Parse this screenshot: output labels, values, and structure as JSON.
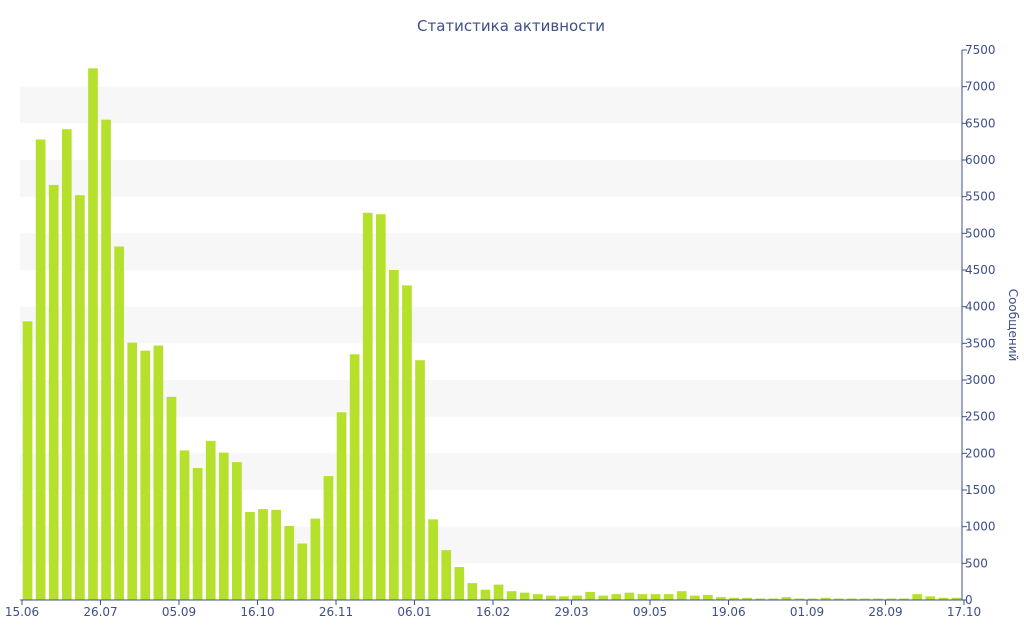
{
  "chart_data": {
    "type": "bar",
    "title": "Статистика активности",
    "ylabel": "Сообщений",
    "xlabel": "",
    "y_axis_position": "right",
    "ylim": [
      0,
      7500
    ],
    "y_ticks": [
      0,
      500,
      1000,
      1500,
      2000,
      2500,
      3000,
      3500,
      4000,
      4500,
      5000,
      5500,
      6000,
      6500,
      7000,
      7500
    ],
    "x_tick_labels": [
      {
        "index": 0,
        "label": "15.06"
      },
      {
        "index": 6,
        "label": "26.07"
      },
      {
        "index": 12,
        "label": "05.09"
      },
      {
        "index": 18,
        "label": "16.10"
      },
      {
        "index": 24,
        "label": "26.11"
      },
      {
        "index": 30,
        "label": "06.01"
      },
      {
        "index": 36,
        "label": "16.02"
      },
      {
        "index": 42,
        "label": "29.03"
      },
      {
        "index": 48,
        "label": "09.05"
      },
      {
        "index": 54,
        "label": "19.06"
      },
      {
        "index": 60,
        "label": "01.09"
      },
      {
        "index": 66,
        "label": "28.09"
      },
      {
        "index": 72,
        "label": "17.10"
      }
    ],
    "grid": "horizontal alternating bands",
    "bar_color": "#b5e02c",
    "values": [
      3800,
      6280,
      5660,
      6420,
      5520,
      7250,
      6550,
      4820,
      3510,
      3400,
      3470,
      2770,
      2040,
      1800,
      2170,
      2010,
      1880,
      1200,
      1240,
      1230,
      1010,
      770,
      1110,
      1690,
      2560,
      3350,
      5280,
      5260,
      4500,
      4290,
      3270,
      1100,
      680,
      450,
      230,
      140,
      210,
      120,
      100,
      80,
      60,
      50,
      60,
      110,
      60,
      80,
      100,
      80,
      80,
      80,
      120,
      60,
      70,
      40,
      30,
      30,
      20,
      20,
      40,
      20,
      20,
      30,
      20,
      20,
      20,
      20,
      20,
      20,
      80,
      50,
      30,
      30
    ]
  }
}
